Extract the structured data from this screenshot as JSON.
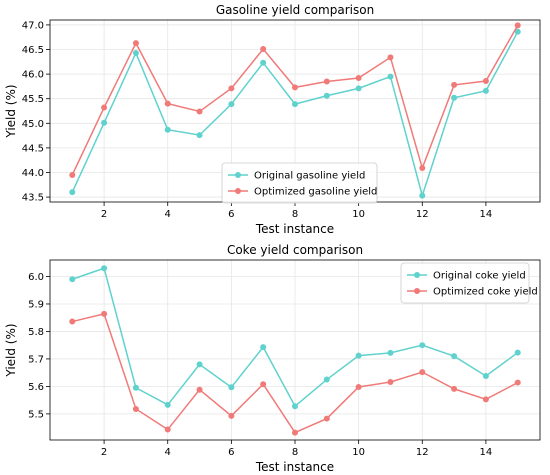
{
  "chart_data": [
    {
      "type": "line",
      "title": "Gasoline yield comparison",
      "xlabel": "Test instance",
      "ylabel": "Yield (%)",
      "x": [
        1,
        2,
        3,
        4,
        5,
        6,
        7,
        8,
        9,
        10,
        11,
        12,
        13,
        14,
        15
      ],
      "xlim": [
        0.3,
        15.7
      ],
      "ylim": [
        43.4,
        47.1
      ],
      "xticks": [
        2,
        4,
        6,
        8,
        10,
        12,
        14
      ],
      "yticks": [
        43.5,
        44.0,
        44.5,
        45.0,
        45.5,
        46.0,
        46.5,
        47.0
      ],
      "ytick_labels": [
        "43.5",
        "44.0",
        "44.5",
        "45.0",
        "45.5",
        "46.0",
        "46.5",
        "47.0"
      ],
      "grid": true,
      "legend_position": "lower-center",
      "series": [
        {
          "name": "Original gasoline yield",
          "color": "#5fd2cd",
          "values": [
            43.6,
            45.01,
            46.43,
            44.87,
            44.76,
            45.39,
            46.23,
            45.39,
            45.56,
            45.71,
            45.95,
            43.53,
            45.52,
            45.66,
            46.86
          ]
        },
        {
          "name": "Optimized gasoline yield",
          "color": "#f07a78",
          "values": [
            43.95,
            45.32,
            46.63,
            45.4,
            45.24,
            45.71,
            46.51,
            45.73,
            45.85,
            45.92,
            46.34,
            44.09,
            45.78,
            45.86,
            46.99
          ]
        }
      ]
    },
    {
      "type": "line",
      "title": "Coke yield comparison",
      "xlabel": "Test instance",
      "ylabel": "Yield (%)",
      "x": [
        1,
        2,
        3,
        4,
        5,
        6,
        7,
        8,
        9,
        10,
        11,
        12,
        13,
        14,
        15
      ],
      "xlim": [
        0.3,
        15.7
      ],
      "ylim": [
        5.405,
        6.06
      ],
      "xticks": [
        2,
        4,
        6,
        8,
        10,
        12,
        14
      ],
      "yticks": [
        5.5,
        5.6,
        5.7,
        5.8,
        5.9,
        6.0
      ],
      "ytick_labels": [
        "5.5",
        "5.6",
        "5.7",
        "5.8",
        "5.9",
        "6.0"
      ],
      "grid": true,
      "legend_position": "top-right",
      "series": [
        {
          "name": "Original coke yield",
          "color": "#5fd2cd",
          "values": [
            5.99,
            6.03,
            5.595,
            5.533,
            5.68,
            5.597,
            5.743,
            5.528,
            5.625,
            5.712,
            5.722,
            5.75,
            5.71,
            5.638,
            5.723
          ]
        },
        {
          "name": "Optimized coke yield",
          "color": "#f07a78",
          "values": [
            5.836,
            5.864,
            5.518,
            5.443,
            5.588,
            5.493,
            5.608,
            5.432,
            5.483,
            5.598,
            5.616,
            5.652,
            5.591,
            5.553,
            5.614
          ]
        }
      ]
    }
  ]
}
